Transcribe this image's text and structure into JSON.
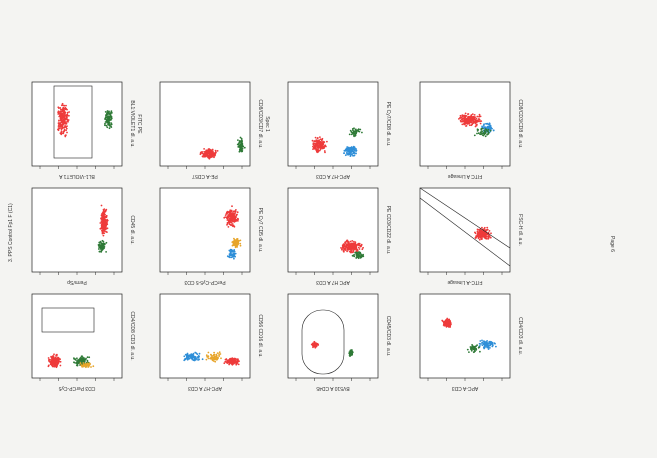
{
  "page": {
    "side_label": "3. PPS Control Fp1 F (C1)",
    "page_number": "Page 6"
  },
  "plots": [
    {
      "row": 0,
      "col": 0,
      "ylabel": "BL1:VIOLET1 dl. a.u.",
      "ylabel2": "FITC PE",
      "xlabel": "BL1-VIOLET1 A"
    },
    {
      "row": 0,
      "col": 1,
      "ylabel": "CD8/CD3/CD7 dl. a.u.",
      "ylabel2": "Spec 1",
      "xlabel": "PE-A CD57"
    },
    {
      "row": 0,
      "col": 2,
      "ylabel": "PE Cy7/CD8 dl. a.u.",
      "ylabel2": "",
      "xlabel": "APC-H7 A CD3"
    },
    {
      "row": 0,
      "col": 3,
      "ylabel": "CD8/CD3/CD8 dl. a.u.",
      "ylabel2": "",
      "xlabel": "FITC A Lineage"
    },
    {
      "row": 1,
      "col": 0,
      "ylabel": "CD45 dl. a.u.",
      "ylabel2": "",
      "xlabel": "Perm/Sp"
    },
    {
      "row": 1,
      "col": 1,
      "ylabel": "PE Cy7 CD5 dl. a.u.",
      "ylabel2": "",
      "xlabel": "PerCP-Cy5-5 CD3"
    },
    {
      "row": 1,
      "col": 2,
      "ylabel": "PE CD3/CD22 dl. a.u.",
      "ylabel2": "",
      "xlabel": "APC H7 A CD3"
    },
    {
      "row": 1,
      "col": 3,
      "ylabel": "FSC-H dl. a.u.",
      "ylabel2": "",
      "xlabel": "FITC-A Lineage"
    },
    {
      "row": 2,
      "col": 0,
      "ylabel": "CD4/CD8 CD3 dl. a.u.",
      "ylabel2": "",
      "xlabel": "CD3 PerCP-Cy5"
    },
    {
      "row": 2,
      "col": 1,
      "ylabel": "CD56 CD16 dl. a.u.",
      "ylabel2": "",
      "xlabel": "APC-H7 A CD3"
    },
    {
      "row": 2,
      "col": 2,
      "ylabel": "CD45/CD3 dl. a.u.",
      "ylabel2": "",
      "xlabel": "BV510 A CD45"
    },
    {
      "row": 2,
      "col": 3,
      "ylabel": "CD4/CD3 dl. a.u.",
      "ylabel2": "",
      "xlabel": "APC-A CD3"
    }
  ],
  "colors": {
    "red": "#ee3b3b",
    "green": "#2f7a37",
    "blue": "#2f8fd8",
    "orange": "#e7a52b",
    "ink": "#222222"
  }
}
